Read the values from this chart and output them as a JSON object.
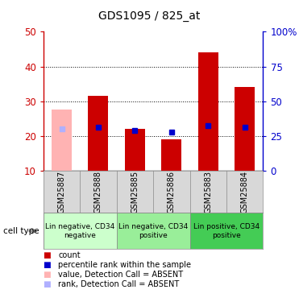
{
  "title": "GDS1095 / 825_at",
  "samples": [
    "GSM25887",
    "GSM25888",
    "GSM25885",
    "GSM25886",
    "GSM25883",
    "GSM25884"
  ],
  "bar_values": [
    27.5,
    31.5,
    22.0,
    19.0,
    44.0,
    34.0
  ],
  "bar_colors": [
    "#ffb3b3",
    "#cc0000",
    "#cc0000",
    "#cc0000",
    "#cc0000",
    "#cc0000"
  ],
  "rank_values": [
    30.0,
    31.5,
    29.0,
    28.0,
    32.5,
    31.5
  ],
  "rank_colors": [
    "#b0b0ff",
    "#0000cc",
    "#0000cc",
    "#0000cc",
    "#0000cc",
    "#0000cc"
  ],
  "absent_mask": [
    true,
    false,
    false,
    false,
    false,
    false
  ],
  "cell_type_groups": [
    {
      "label": "Lin negative, CD34\nnegative",
      "span": [
        0,
        2
      ],
      "color": "#ccffcc"
    },
    {
      "label": "Lin negative, CD34\npositive",
      "span": [
        2,
        4
      ],
      "color": "#99ee99"
    },
    {
      "label": "Lin positive, CD34\npositive",
      "span": [
        4,
        6
      ],
      "color": "#44cc55"
    }
  ],
  "ylim_left": [
    10,
    50
  ],
  "ylim_right": [
    0,
    100
  ],
  "yticks_left": [
    10,
    20,
    30,
    40,
    50
  ],
  "yticks_right": [
    0,
    25,
    50,
    75,
    100
  ],
  "ytick_labels_right": [
    "0",
    "25",
    "50",
    "75",
    "100%"
  ],
  "left_axis_color": "#cc0000",
  "right_axis_color": "#0000cc",
  "bg_color": "#ffffff",
  "grid_dotted_at": [
    20,
    30,
    40
  ],
  "bar_width": 0.55,
  "legend_labels": [
    "count",
    "percentile rank within the sample",
    "value, Detection Call = ABSENT",
    "rank, Detection Call = ABSENT"
  ],
  "legend_colors": [
    "#cc0000",
    "#0000cc",
    "#ffb3b3",
    "#b0b0ff"
  ]
}
